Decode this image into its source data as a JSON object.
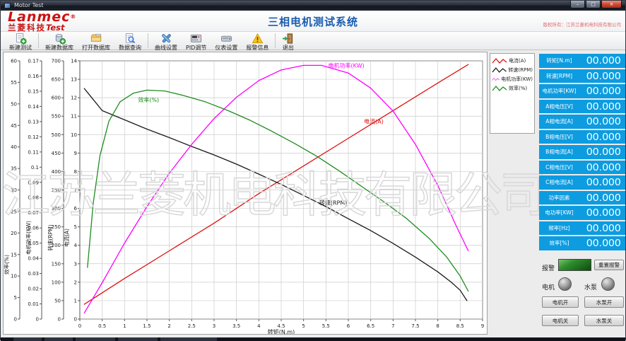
{
  "window": {
    "title": "Motor Test",
    "minimize": "–",
    "maximize": "□",
    "close": "×"
  },
  "header": {
    "logo_line1": "Lanmec",
    "logo_reg": "®",
    "logo_line2_cn": "兰菱科技",
    "logo_line2_en": "Test",
    "app_title": "三相电机测试系统",
    "copyright": "版权所有：江苏兰菱机电科技有限公司"
  },
  "toolbar": {
    "separators_after": [
      0,
      3,
      7
    ],
    "items": [
      {
        "id": "new-test",
        "label": "新建测试",
        "icon": "document-plus-icon"
      },
      {
        "id": "new-database",
        "label": "新建数据库",
        "icon": "database-plus-icon"
      },
      {
        "id": "open-database",
        "label": "打开数据库",
        "icon": "folder-icon"
      },
      {
        "id": "data-query",
        "label": "数据查询",
        "icon": "document-magnifier-icon"
      },
      {
        "id": "curve-settings",
        "label": "曲线设置",
        "icon": "tools-icon"
      },
      {
        "id": "pid-adjust",
        "label": "PID调节",
        "icon": "instrument-panel-icon"
      },
      {
        "id": "meter-settings",
        "label": "仪表设置",
        "icon": "device-icon"
      },
      {
        "id": "alarm-info",
        "label": "报警信息",
        "icon": "warning-triangle-icon"
      },
      {
        "id": "exit",
        "label": "退出",
        "icon": "exit-door-icon"
      }
    ]
  },
  "legend": {
    "items": [
      {
        "label": "电流(A)",
        "color": "#dd1111"
      },
      {
        "label": "转速(RPM)",
        "color": "#1a1a1a"
      },
      {
        "label": "电机功率(KW)",
        "color": "#ff00ff"
      },
      {
        "label": "效率(%)",
        "color": "#1e8c1e"
      }
    ]
  },
  "chart_data": {
    "type": "line",
    "x_axis": {
      "label": "转矩(N.m)",
      "min": 0,
      "max": 9,
      "tick_step": 0.5
    },
    "y_axes": [
      {
        "id": "eff",
        "title": "效率(%)",
        "min": 0,
        "max": 60,
        "tick_step": 5
      },
      {
        "id": "power",
        "title": "电机功率(KW)",
        "min": 0,
        "max": 0.17,
        "tick_step": 0.01
      },
      {
        "id": "rpm",
        "title": "转速(RPM)",
        "min": 0,
        "max": 700,
        "tick_step": 50
      },
      {
        "id": "current",
        "title": "电流(A)",
        "min": 0,
        "max": 14,
        "tick_step": 1
      }
    ],
    "grid": {
      "h_divisions": 14,
      "color": "#cccccc",
      "on": true
    },
    "series": [
      {
        "name": "电流(A)",
        "axis": "current",
        "color": "#dd1111",
        "points": [
          [
            0.1,
            0.8
          ],
          [
            1,
            2.2
          ],
          [
            2,
            3.7
          ],
          [
            3,
            5.2
          ],
          [
            4,
            6.8
          ],
          [
            5,
            8.3
          ],
          [
            6,
            9.8
          ],
          [
            7,
            11.3
          ],
          [
            8,
            12.8
          ],
          [
            8.68,
            13.8
          ]
        ]
      },
      {
        "name": "转速(RPM)",
        "axis": "rpm",
        "color": "#1a1a1a",
        "points": [
          [
            0.1,
            625
          ],
          [
            0.5,
            565
          ],
          [
            1,
            540
          ],
          [
            1.5,
            515
          ],
          [
            2,
            492
          ],
          [
            2.5,
            468
          ],
          [
            3,
            445
          ],
          [
            3.5,
            420
          ],
          [
            4,
            393
          ],
          [
            4.5,
            365
          ],
          [
            5,
            335
          ],
          [
            5.5,
            305
          ],
          [
            6,
            272
          ],
          [
            6.5,
            240
          ],
          [
            7,
            205
          ],
          [
            7.5,
            168
          ],
          [
            8,
            128
          ],
          [
            8.3,
            100
          ],
          [
            8.5,
            78
          ],
          [
            8.65,
            50
          ]
        ]
      },
      {
        "name": "电机功率(KW)",
        "axis": "power",
        "color": "#ff00ff",
        "points": [
          [
            0.1,
            0.004
          ],
          [
            0.5,
            0.024
          ],
          [
            1,
            0.05
          ],
          [
            1.5,
            0.074
          ],
          [
            2,
            0.096
          ],
          [
            2.5,
            0.115
          ],
          [
            3,
            0.132
          ],
          [
            3.5,
            0.146
          ],
          [
            4,
            0.157
          ],
          [
            4.5,
            0.164
          ],
          [
            5,
            0.167
          ],
          [
            5.4,
            0.167
          ],
          [
            6,
            0.162
          ],
          [
            6.5,
            0.152
          ],
          [
            7,
            0.137
          ],
          [
            7.5,
            0.115
          ],
          [
            8,
            0.088
          ],
          [
            8.4,
            0.062
          ],
          [
            8.68,
            0.045
          ]
        ]
      },
      {
        "name": "效率(%)",
        "axis": "eff",
        "color": "#1e8c1e",
        "points": [
          [
            0.17,
            12
          ],
          [
            0.3,
            27
          ],
          [
            0.45,
            38
          ],
          [
            0.65,
            46
          ],
          [
            0.9,
            50.5
          ],
          [
            1.2,
            52.5
          ],
          [
            1.5,
            53.2
          ],
          [
            1.9,
            53
          ],
          [
            2.3,
            52
          ],
          [
            2.8,
            50.5
          ],
          [
            3.3,
            48.5
          ],
          [
            3.8,
            46.2
          ],
          [
            4.3,
            43.6
          ],
          [
            4.8,
            40.8
          ],
          [
            5.3,
            37.8
          ],
          [
            5.8,
            34.4
          ],
          [
            6.3,
            30.8
          ],
          [
            6.8,
            27.2
          ],
          [
            7.3,
            23.4
          ],
          [
            7.8,
            18.8
          ],
          [
            8.2,
            14.4
          ],
          [
            8.5,
            10
          ],
          [
            8.68,
            6.5
          ]
        ]
      }
    ],
    "curve_labels": [
      {
        "text": "电机功率(KW)",
        "axis": "power",
        "x": 5.55,
        "y": 0.1655,
        "color": "#ff00ff"
      },
      {
        "text": "效率(%)",
        "axis": "eff",
        "x": 1.3,
        "y": 50.5,
        "color": "#1e8c1e"
      },
      {
        "text": "电流(A)",
        "axis": "current",
        "x": 6.35,
        "y": 10.6,
        "color": "#dd1111"
      },
      {
        "text": "转速(RPM)",
        "axis": "rpm",
        "x": 5.35,
        "y": 310,
        "color": "#1a1a1a"
      }
    ]
  },
  "panel": {
    "rows": [
      {
        "label": "转矩[N.m]",
        "value": "00.000"
      },
      {
        "label": "转速[RPM]",
        "value": "00.000"
      },
      {
        "label": "电机功率[KW]",
        "value": "00.000"
      },
      {
        "label": "A相电压[V]",
        "value": "00.000"
      },
      {
        "label": "A相电流[A]",
        "value": "00.000"
      },
      {
        "label": "B相电压[V]",
        "value": "00.000"
      },
      {
        "label": "B相电流[A]",
        "value": "00.000"
      },
      {
        "label": "C相电压[V]",
        "value": "00.000"
      },
      {
        "label": "C相电流[A]",
        "value": "00.000"
      },
      {
        "label": "功率因素",
        "value": "00.000"
      },
      {
        "label": "电功率[KW]",
        "value": "00.000"
      },
      {
        "label": "频率[Hz]",
        "value": "00.000"
      },
      {
        "label": "效率[%]",
        "value": "00.000"
      }
    ]
  },
  "controls": {
    "alarm_label": "报警",
    "reset_alarm": "重置报警",
    "motor_label": "电机",
    "pump_label": "水泵",
    "motor_on": "电机开",
    "pump_on": "水泵开",
    "motor_off": "电机关",
    "pump_off": "水泵关"
  },
  "watermark": "江苏兰菱机电科技有限公司",
  "colors": {
    "panel_blue": "#0d9ce0",
    "title_blue": "#1a5cb0",
    "logo_red": "#cc1111",
    "copyright_red": "#e26b6b",
    "alarm_green": "#2e8f2e",
    "curve_current": "#dd1111",
    "curve_rpm": "#1a1a1a",
    "curve_power": "#ff00ff",
    "curve_eff": "#1e8c1e"
  }
}
